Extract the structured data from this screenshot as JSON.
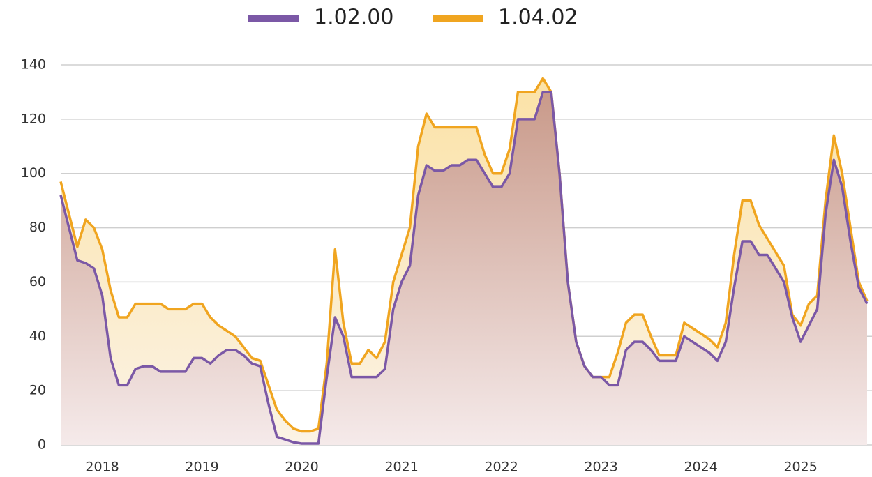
{
  "chart_data": {
    "type": "line",
    "area": true,
    "categories": [
      null,
      null,
      null,
      null,
      null,
      "2018",
      null,
      null,
      null,
      null,
      null,
      null,
      null,
      null,
      null,
      null,
      null,
      "2019",
      null,
      null,
      null,
      null,
      null,
      null,
      null,
      null,
      null,
      null,
      null,
      "2020",
      null,
      null,
      null,
      null,
      null,
      null,
      null,
      null,
      null,
      null,
      null,
      "2021",
      null,
      null,
      null,
      null,
      null,
      null,
      null,
      null,
      null,
      null,
      null,
      "2022",
      null,
      null,
      null,
      null,
      null,
      null,
      null,
      null,
      null,
      null,
      null,
      "2023",
      null,
      null,
      null,
      null,
      null,
      null,
      null,
      null,
      null,
      null,
      null,
      "2024",
      null,
      null,
      null,
      null,
      null,
      null,
      null,
      null,
      null,
      null,
      null,
      "2025",
      null,
      null,
      null,
      null,
      null,
      null,
      null,
      null
    ],
    "series": [
      {
        "name": "1.02.00",
        "color": "#7b58a6",
        "values": [
          92,
          80,
          68,
          67,
          65,
          55,
          32,
          22,
          22,
          28,
          29,
          29,
          27,
          27,
          27,
          27,
          32,
          32,
          30,
          33,
          35,
          35,
          33,
          30,
          29,
          15,
          3,
          2,
          1,
          0.5,
          0.5,
          0.5,
          25,
          47,
          40,
          25,
          25,
          25,
          25,
          28,
          50,
          60,
          66,
          92,
          103,
          101,
          101,
          103,
          103,
          105,
          105,
          100,
          95,
          95,
          100,
          120,
          120,
          120,
          130,
          130,
          100,
          60,
          38,
          29,
          25,
          25,
          22,
          22,
          35,
          38,
          38,
          35,
          31,
          31,
          31,
          40,
          38,
          36,
          34,
          31,
          38,
          58,
          75,
          75,
          70,
          70,
          65,
          60,
          47,
          38,
          44,
          50,
          85,
          105,
          95,
          75,
          58,
          52
        ]
      },
      {
        "name": "1.04.02",
        "color": "#f0a520",
        "values": [
          97,
          85,
          73,
          83,
          80,
          72,
          57,
          47,
          47,
          52,
          52,
          52,
          52,
          50,
          50,
          50,
          52,
          52,
          47,
          44,
          42,
          40,
          36,
          32,
          31,
          22,
          13,
          9,
          6,
          5,
          5,
          6,
          30,
          72,
          45,
          30,
          30,
          35,
          32,
          38,
          60,
          70,
          80,
          110,
          122,
          117,
          117,
          117,
          117,
          117,
          117,
          107,
          100,
          100,
          109,
          130,
          130,
          130,
          135,
          130,
          100,
          60,
          38,
          29,
          25,
          25,
          25,
          34,
          45,
          48,
          48,
          40,
          33,
          33,
          33,
          45,
          43,
          41,
          39,
          36,
          45,
          70,
          90,
          90,
          81,
          76,
          71,
          66,
          48,
          44,
          52,
          55,
          90,
          114,
          100,
          80,
          60,
          53
        ]
      }
    ],
    "ylim": [
      0,
      140
    ],
    "yticks": [
      0,
      20,
      40,
      60,
      80,
      100,
      120,
      140
    ],
    "grid": true,
    "legend": "top"
  }
}
